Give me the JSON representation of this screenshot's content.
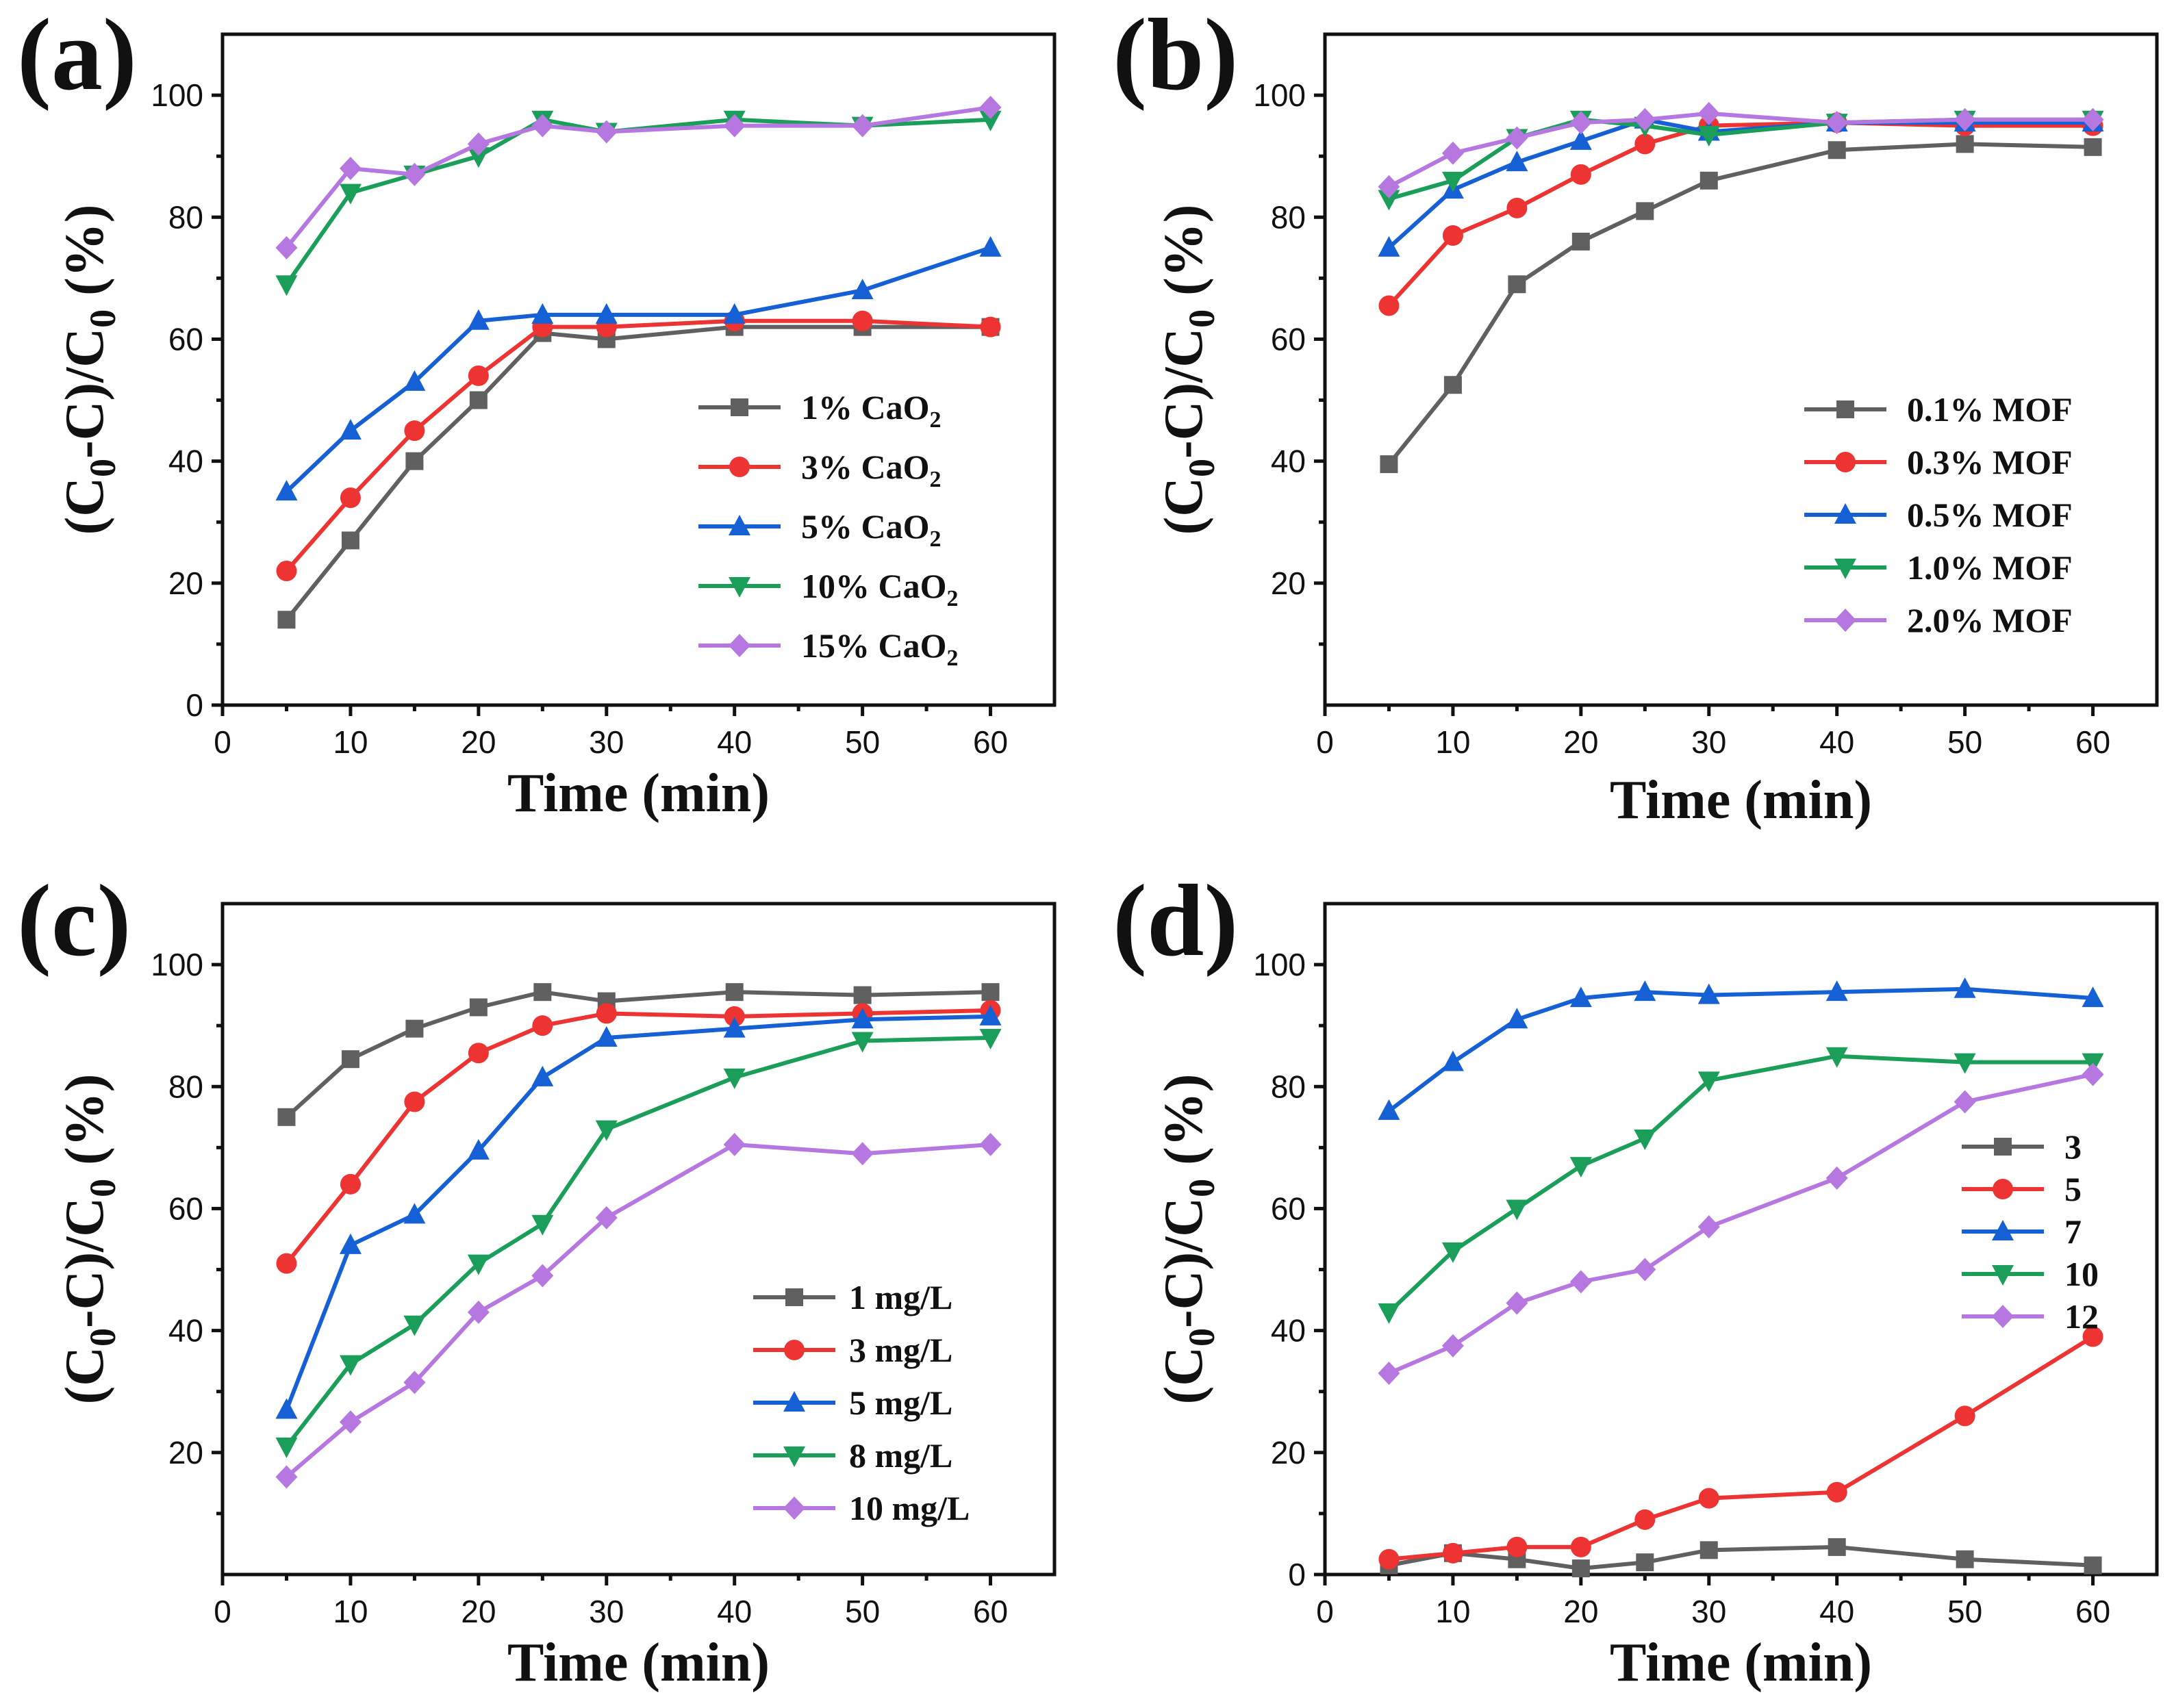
{
  "figure": {
    "ytitle": "(C0-C)/C0 (%)"
  },
  "chart_data": [
    {
      "panel": "(a)",
      "type": "line",
      "xlabel": "Time (min)",
      "ylabel": "(C0-C)/C0 (%)",
      "xlim": [
        0,
        65
      ],
      "ylim": [
        0,
        110
      ],
      "xticks": [
        0,
        10,
        20,
        30,
        40,
        50,
        60
      ],
      "yticks": [
        0,
        20,
        40,
        60,
        80,
        100
      ],
      "legend_position": "bottom-right",
      "series": [
        {
          "name": "1% CaO2",
          "label_main": "1% CaO",
          "label_sub": "2",
          "color": "#606060",
          "marker": "square",
          "x": [
            5,
            10,
            15,
            20,
            25,
            30,
            40,
            50,
            60
          ],
          "y": [
            14,
            27,
            40,
            50,
            61,
            60,
            62,
            62,
            62
          ]
        },
        {
          "name": "3% CaO2",
          "label_main": "3% CaO",
          "label_sub": "2",
          "color": "#ee3333",
          "marker": "circle",
          "x": [
            5,
            10,
            15,
            20,
            25,
            30,
            40,
            50,
            60
          ],
          "y": [
            22,
            34,
            45,
            54,
            62,
            62,
            63,
            63,
            62
          ]
        },
        {
          "name": "5% CaO2",
          "label_main": "5% CaO",
          "label_sub": "2",
          "color": "#1560d4",
          "marker": "triangle-up",
          "x": [
            5,
            10,
            15,
            20,
            25,
            30,
            40,
            50,
            60
          ],
          "y": [
            35,
            45,
            53,
            63,
            64,
            64,
            64,
            68,
            75
          ]
        },
        {
          "name": "10% CaO2",
          "label_main": "10% CaO",
          "label_sub": "2",
          "color": "#1a9e5a",
          "marker": "triangle-down",
          "x": [
            5,
            10,
            15,
            20,
            25,
            30,
            40,
            50,
            60
          ],
          "y": [
            69,
            84,
            87,
            90,
            96,
            94,
            96,
            95,
            96
          ]
        },
        {
          "name": "15% CaO2",
          "label_main": "15% CaO",
          "label_sub": "2",
          "color": "#b678e0",
          "marker": "diamond",
          "x": [
            5,
            10,
            15,
            20,
            25,
            30,
            40,
            50,
            60
          ],
          "y": [
            75,
            88,
            87,
            92,
            95,
            94,
            95,
            95,
            98
          ]
        }
      ]
    },
    {
      "panel": "(b)",
      "type": "line",
      "xlabel": "Time (min)",
      "ylabel": "(C0-C)/C0 (%)",
      "xlim": [
        0,
        65
      ],
      "ylim": [
        0,
        110
      ],
      "xticks": [
        0,
        10,
        20,
        30,
        40,
        50,
        60
      ],
      "yticks": [
        20,
        40,
        60,
        80,
        100
      ],
      "legend_position": "bottom-right",
      "series": [
        {
          "name": "0.1% MOF",
          "color": "#606060",
          "marker": "square",
          "x": [
            5,
            10,
            15,
            20,
            25,
            30,
            40,
            50,
            60
          ],
          "y": [
            39.5,
            52.5,
            69,
            76,
            81,
            86,
            91,
            92,
            91.5
          ]
        },
        {
          "name": "0.3% MOF",
          "color": "#ee3333",
          "marker": "circle",
          "x": [
            5,
            10,
            15,
            20,
            25,
            30,
            40,
            50,
            60
          ],
          "y": [
            65.5,
            77,
            81.5,
            87,
            92,
            95,
            95.5,
            95,
            95
          ]
        },
        {
          "name": "0.5% MOF",
          "color": "#1560d4",
          "marker": "triangle-up",
          "x": [
            5,
            10,
            15,
            20,
            25,
            30,
            40,
            50,
            60
          ],
          "y": [
            75,
            84.5,
            89,
            92.5,
            96,
            94,
            95.5,
            95.5,
            95.5
          ]
        },
        {
          "name": "1.0% MOF",
          "color": "#1a9e5a",
          "marker": "triangle-down",
          "x": [
            5,
            10,
            15,
            20,
            25,
            30,
            40,
            50,
            60
          ],
          "y": [
            83,
            86,
            93,
            96,
            95,
            93.5,
            95.5,
            96,
            96
          ]
        },
        {
          "name": "2.0% MOF",
          "color": "#b678e0",
          "marker": "diamond",
          "x": [
            5,
            10,
            15,
            20,
            25,
            30,
            40,
            50,
            60
          ],
          "y": [
            85,
            90.5,
            93,
            95.5,
            96,
            97,
            95.5,
            96,
            96
          ]
        }
      ]
    },
    {
      "panel": "(c)",
      "type": "line",
      "xlabel": "Time (min)",
      "ylabel": "(C0-C)/C0 (%)",
      "xlim": [
        0,
        65
      ],
      "ylim": [
        0,
        110
      ],
      "xticks": [
        0,
        10,
        20,
        30,
        40,
        50,
        60
      ],
      "yticks": [
        20,
        40,
        60,
        80,
        100
      ],
      "legend_position": "bottom-right",
      "series": [
        {
          "name": "1 mg/L",
          "color": "#606060",
          "marker": "square",
          "x": [
            5,
            10,
            15,
            20,
            25,
            30,
            40,
            50,
            60
          ],
          "y": [
            75,
            84.5,
            89.5,
            93,
            95.5,
            94,
            95.5,
            95,
            95.5
          ]
        },
        {
          "name": "3 mg/L",
          "color": "#ee3333",
          "marker": "circle",
          "x": [
            5,
            10,
            15,
            20,
            25,
            30,
            40,
            50,
            60
          ],
          "y": [
            51,
            64,
            77.5,
            85.5,
            90,
            92,
            91.5,
            92,
            92.5
          ]
        },
        {
          "name": "5 mg/L",
          "color": "#1560d4",
          "marker": "triangle-up",
          "x": [
            5,
            10,
            15,
            20,
            25,
            30,
            40,
            50,
            60
          ],
          "y": [
            27,
            54,
            59,
            69.5,
            81.5,
            88,
            89.5,
            91,
            91.5
          ]
        },
        {
          "name": "8 mg/L",
          "color": "#1a9e5a",
          "marker": "triangle-down",
          "x": [
            5,
            10,
            15,
            20,
            25,
            30,
            40,
            50,
            60
          ],
          "y": [
            21,
            34.5,
            41,
            51,
            57.5,
            73,
            81.5,
            87.5,
            88
          ]
        },
        {
          "name": "10 mg/L",
          "color": "#b678e0",
          "marker": "diamond",
          "x": [
            5,
            10,
            15,
            20,
            25,
            30,
            40,
            50,
            60
          ],
          "y": [
            16,
            25,
            31.5,
            43,
            49,
            58.5,
            70.5,
            69,
            70.5
          ]
        }
      ]
    },
    {
      "panel": "(d)",
      "type": "line",
      "xlabel": "Time (min)",
      "ylabel": "(C0-C)/C0 (%)",
      "xlim": [
        0,
        65
      ],
      "ylim": [
        0,
        110
      ],
      "xticks": [
        0,
        10,
        20,
        30,
        40,
        50,
        60
      ],
      "yticks": [
        0,
        20,
        40,
        60,
        80,
        100
      ],
      "legend_position": "center-right",
      "series": [
        {
          "name": "3",
          "color": "#606060",
          "marker": "square",
          "x": [
            5,
            10,
            15,
            20,
            25,
            30,
            40,
            50,
            60
          ],
          "y": [
            1.5,
            3.5,
            2.5,
            1,
            2,
            4,
            4.5,
            2.5,
            1.5
          ]
        },
        {
          "name": "5",
          "color": "#ee3333",
          "marker": "circle",
          "x": [
            5,
            10,
            15,
            20,
            25,
            30,
            40,
            50,
            60
          ],
          "y": [
            2.5,
            3.5,
            4.5,
            4.5,
            9,
            12.5,
            13.5,
            26,
            39
          ]
        },
        {
          "name": "7",
          "color": "#1560d4",
          "marker": "triangle-up",
          "x": [
            5,
            10,
            15,
            20,
            25,
            30,
            40,
            50,
            60
          ],
          "y": [
            76,
            84,
            91,
            94.5,
            95.5,
            95,
            95.5,
            96,
            94.5
          ]
        },
        {
          "name": "10",
          "color": "#1a9e5a",
          "marker": "triangle-down",
          "x": [
            5,
            10,
            15,
            20,
            25,
            30,
            40,
            50,
            60
          ],
          "y": [
            43,
            53,
            60,
            67,
            71.5,
            81,
            85,
            84,
            84
          ]
        },
        {
          "name": "12",
          "color": "#b678e0",
          "marker": "diamond",
          "x": [
            5,
            10,
            15,
            20,
            25,
            30,
            40,
            50,
            60
          ],
          "y": [
            33,
            37.5,
            44.5,
            48,
            50,
            57,
            65,
            77.5,
            82
          ]
        }
      ]
    }
  ]
}
